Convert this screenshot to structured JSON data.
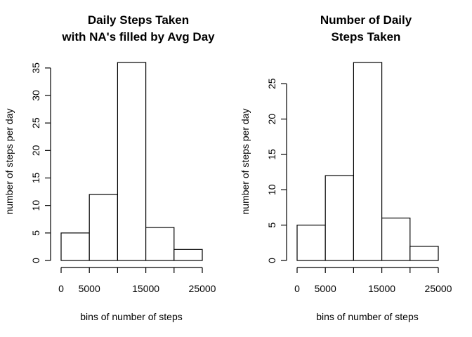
{
  "chart_data": [
    {
      "type": "bar",
      "title": [
        "Daily Steps Taken",
        "with NA's filled by Avg Day"
      ],
      "xlabel": "bins of number of steps",
      "ylabel": "number of steps per day",
      "bin_edges": [
        0,
        5000,
        10000,
        15000,
        20000,
        25000
      ],
      "values": [
        5,
        12,
        36,
        6,
        2
      ],
      "xlim": [
        0,
        25000
      ],
      "ylim": [
        0,
        36
      ],
      "x_ticks": [
        0,
        5000,
        10000,
        15000,
        20000,
        25000
      ],
      "x_tick_labels": [
        "0",
        "5000",
        "",
        "15000",
        "",
        "25000"
      ],
      "y_ticks": [
        0,
        5,
        10,
        15,
        20,
        25,
        30,
        35
      ],
      "y_tick_labels": [
        "0",
        "5",
        "10",
        "15",
        "20",
        "25",
        "30",
        "35"
      ],
      "grid": false,
      "legend": "none"
    },
    {
      "type": "bar",
      "title": [
        "Number of Daily",
        "Steps Taken"
      ],
      "xlabel": "bins of number of steps",
      "ylabel": "number of steps per day",
      "bin_edges": [
        0,
        5000,
        10000,
        15000,
        20000,
        25000
      ],
      "values": [
        5,
        12,
        28,
        6,
        2
      ],
      "xlim": [
        0,
        25000
      ],
      "ylim": [
        0,
        28
      ],
      "x_ticks": [
        0,
        5000,
        10000,
        15000,
        20000,
        25000
      ],
      "x_tick_labels": [
        "0",
        "5000",
        "",
        "15000",
        "",
        "25000"
      ],
      "y_ticks": [
        0,
        5,
        10,
        15,
        20,
        25
      ],
      "y_tick_labels": [
        "0",
        "5",
        "10",
        "15",
        "20",
        "25"
      ],
      "grid": false,
      "legend": "none"
    }
  ]
}
